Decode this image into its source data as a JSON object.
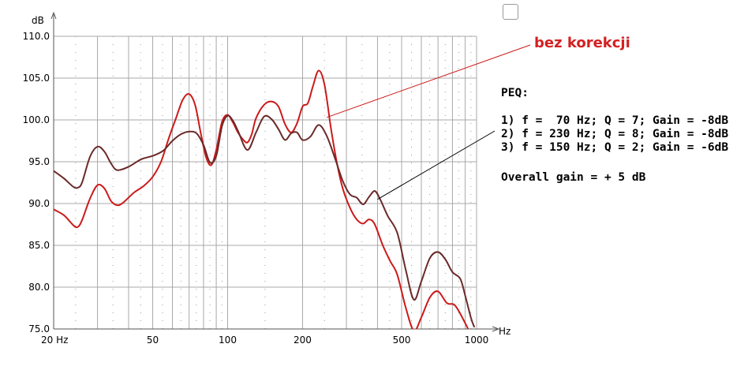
{
  "chart_data": {
    "type": "line",
    "title": "",
    "xlabel": "Hz",
    "ylabel": "dB",
    "xscale": "log",
    "xlim": [
      20,
      1000
    ],
    "ylim": [
      75,
      110
    ],
    "grid": true,
    "x_tick_labels": [
      {
        "value": 20,
        "label": "20 Hz"
      },
      {
        "value": 50,
        "label": "50"
      },
      {
        "value": 100,
        "label": "100"
      },
      {
        "value": 200,
        "label": "200"
      },
      {
        "value": 500,
        "label": "500"
      },
      {
        "value": 1000,
        "label": "1000"
      }
    ],
    "y_tick_labels": [
      {
        "value": 75,
        "label": "75.0"
      },
      {
        "value": 80,
        "label": "80.0"
      },
      {
        "value": 85,
        "label": "85.0"
      },
      {
        "value": 90,
        "label": "90.0"
      },
      {
        "value": 95,
        "label": "95.0"
      },
      {
        "value": 100,
        "label": "100.0"
      },
      {
        "value": 105,
        "label": "105.0"
      },
      {
        "value": 110,
        "label": "110.0"
      }
    ],
    "series": [
      {
        "color": "#cc1a1a",
        "points": [
          [
            20,
            89.3
          ],
          [
            22,
            88.6
          ],
          [
            24,
            87.4
          ],
          [
            25,
            87.2
          ],
          [
            26,
            88
          ],
          [
            28,
            90.6
          ],
          [
            30,
            92.2
          ],
          [
            32,
            91.8
          ],
          [
            34,
            90.3
          ],
          [
            36,
            89.8
          ],
          [
            38,
            90.1
          ],
          [
            42,
            91.3
          ],
          [
            46,
            92.1
          ],
          [
            50,
            93.2
          ],
          [
            54,
            95
          ],
          [
            58,
            97.8
          ],
          [
            62,
            100.2
          ],
          [
            66,
            102.4
          ],
          [
            70,
            103.1
          ],
          [
            74,
            101.8
          ],
          [
            78,
            98.4
          ],
          [
            82,
            95.5
          ],
          [
            86,
            94.6
          ],
          [
            90,
            96.4
          ],
          [
            95,
            99.8
          ],
          [
            100,
            100.6
          ],
          [
            105,
            99.7
          ],
          [
            110,
            98.5
          ],
          [
            115,
            97.7
          ],
          [
            120,
            97.3
          ],
          [
            125,
            98.3
          ],
          [
            130,
            100.2
          ],
          [
            140,
            101.8
          ],
          [
            150,
            102.2
          ],
          [
            160,
            101.6
          ],
          [
            170,
            99.5
          ],
          [
            180,
            98.5
          ],
          [
            190,
            99.6
          ],
          [
            200,
            101.6
          ],
          [
            210,
            102
          ],
          [
            220,
            104
          ],
          [
            232,
            105.9
          ],
          [
            245,
            104.2
          ],
          [
            260,
            99
          ],
          [
            275,
            94.8
          ],
          [
            290,
            91.8
          ],
          [
            310,
            89.5
          ],
          [
            330,
            88.1
          ],
          [
            350,
            87.6
          ],
          [
            370,
            88.1
          ],
          [
            390,
            87.5
          ],
          [
            420,
            85
          ],
          [
            450,
            83.1
          ],
          [
            480,
            81.5
          ],
          [
            520,
            77.5
          ],
          [
            560,
            74.8
          ],
          [
            600,
            76.4
          ],
          [
            650,
            78.8
          ],
          [
            700,
            79.5
          ],
          [
            760,
            78.1
          ],
          [
            820,
            77.8
          ],
          [
            900,
            75.7
          ],
          [
            940,
            74.5
          ]
        ]
      },
      {
        "color": "#6b2a2a",
        "points": [
          [
            20,
            93.9
          ],
          [
            22,
            93
          ],
          [
            24,
            92
          ],
          [
            25,
            91.9
          ],
          [
            26,
            92.5
          ],
          [
            28,
            95.6
          ],
          [
            30,
            96.8
          ],
          [
            32,
            96.2
          ],
          [
            34,
            94.8
          ],
          [
            36,
            94
          ],
          [
            40,
            94.4
          ],
          [
            45,
            95.3
          ],
          [
            50,
            95.7
          ],
          [
            55,
            96.3
          ],
          [
            60,
            97.5
          ],
          [
            65,
            98.3
          ],
          [
            70,
            98.6
          ],
          [
            75,
            98.4
          ],
          [
            80,
            97
          ],
          [
            85,
            94.9
          ],
          [
            90,
            95.7
          ],
          [
            95,
            99.3
          ],
          [
            100,
            100.5
          ],
          [
            105,
            99.9
          ],
          [
            110,
            98.7
          ],
          [
            120,
            96.4
          ],
          [
            130,
            98.5
          ],
          [
            140,
            100.4
          ],
          [
            150,
            100.1
          ],
          [
            160,
            98.9
          ],
          [
            170,
            97.6
          ],
          [
            180,
            98.4
          ],
          [
            190,
            98.5
          ],
          [
            200,
            97.6
          ],
          [
            215,
            98
          ],
          [
            232,
            99.4
          ],
          [
            250,
            98.1
          ],
          [
            270,
            95.4
          ],
          [
            290,
            92.7
          ],
          [
            310,
            91.1
          ],
          [
            330,
            90.7
          ],
          [
            350,
            89.9
          ],
          [
            370,
            90.8
          ],
          [
            390,
            91.5
          ],
          [
            410,
            90.5
          ],
          [
            440,
            88.5
          ],
          [
            480,
            86.5
          ],
          [
            520,
            82
          ],
          [
            560,
            78.5
          ],
          [
            600,
            80.7
          ],
          [
            650,
            83.5
          ],
          [
            700,
            84.2
          ],
          [
            750,
            83.3
          ],
          [
            800,
            81.8
          ],
          [
            860,
            81
          ],
          [
            900,
            79
          ],
          [
            950,
            76.3
          ],
          [
            980,
            75.2
          ]
        ]
      }
    ]
  },
  "annotations": {
    "red_label": "bez korekcji",
    "peq_title": "PEQ:",
    "peq_lines": [
      "1) f =  70 Hz; Q = 7; Gain = -8dB",
      "2) f = 230 Hz; Q = 8; Gain = -8dB",
      "3) f = 150 Hz; Q = 2; Gain = -6dB"
    ],
    "overall": "Overall gain = + 5 dB"
  },
  "pointers": [
    {
      "color": "#cc1a1a",
      "target": [
        250,
        100.3
      ]
    },
    {
      "color": "#000000",
      "target": [
        400,
        90.5
      ]
    }
  ]
}
